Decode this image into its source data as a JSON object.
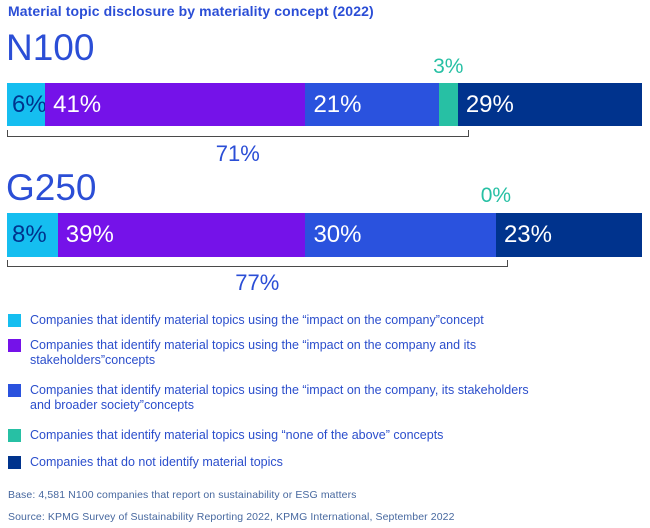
{
  "title": "Material topic disclosure by materiality concept (2022)",
  "chart_data": {
    "type": "bar",
    "orientation": "horizontal-stacked",
    "unit": "percent",
    "title": "Material topic disclosure by materiality concept (2022)",
    "categories": [
      "N100",
      "G250"
    ],
    "series": [
      {
        "name": "Companies that identify material topics using the “impact on the company”concept",
        "color": "#15BEF0",
        "text_color": "#00338D",
        "values": [
          6,
          8
        ]
      },
      {
        "name": "Companies that identify material topics using the “impact on the company and its stakeholders”concepts",
        "color": "#7512E9",
        "text_color": "#FFFFFF",
        "values": [
          41,
          39
        ]
      },
      {
        "name": "Companies that identify material topics using the “impact on the company, its stakeholders and broader society”concepts",
        "color": "#2A52DE",
        "text_color": "#FFFFFF",
        "values": [
          21,
          30
        ]
      },
      {
        "name": "Companies that identify material topics using “none of the above” concepts",
        "color": "#27C0A4",
        "text_color": "#27C0A4",
        "label_position": "above",
        "values": [
          3,
          0
        ]
      },
      {
        "name": "Companies that do not identify material topics",
        "color": "#00338D",
        "text_color": "#FFFFFF",
        "values": [
          29,
          23
        ]
      }
    ],
    "brackets": [
      {
        "category": "N100",
        "span_pct": 71,
        "label": "71%"
      },
      {
        "category": "G250",
        "span_pct": 77,
        "label": "77%"
      }
    ]
  },
  "legend": {
    "items": [
      {
        "color": "#15BEF0",
        "label": "Companies that identify material topics using the “impact on the company”concept"
      },
      {
        "color": "#7512E9",
        "label": "Companies that identify material topics using the “impact on the company and its\nstakeholders”concepts"
      },
      {
        "color": "#2A52DE",
        "label": "Companies that identify material topics using the “impact on the company, its stakeholders\nand broader society”concepts"
      },
      {
        "color": "#27C0A4",
        "label": "Companies that identify material topics using “none of the above” concepts"
      },
      {
        "color": "#00338D",
        "label": "Companies that do not identify material topics"
      }
    ]
  },
  "footer": {
    "base": "Base: 4,581 N100 companies that report on sustainability or ESG matters",
    "source": "Source: KPMG Survey of Sustainability Reporting 2022, KPMG International, September 2022"
  }
}
